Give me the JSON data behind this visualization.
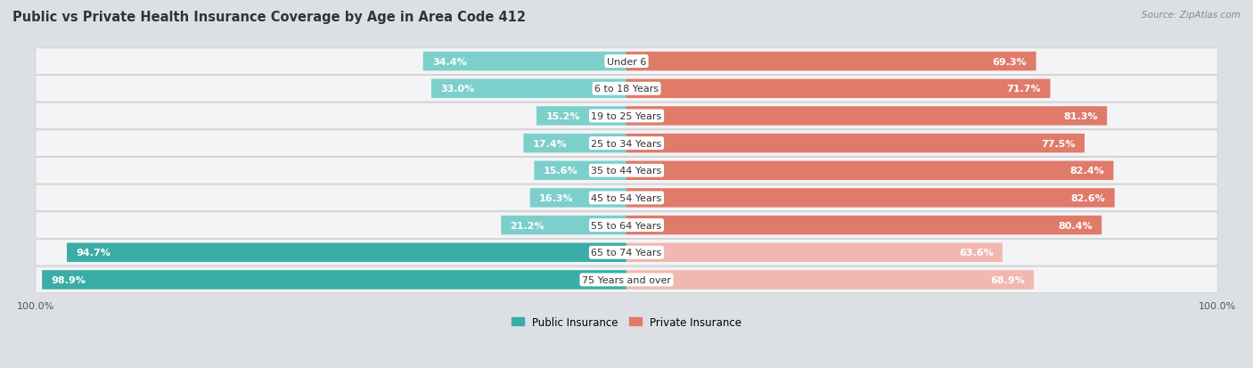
{
  "title": "Public vs Private Health Insurance Coverage by Age in Area Code 412",
  "source": "Source: ZipAtlas.com",
  "categories": [
    "Under 6",
    "6 to 18 Years",
    "19 to 25 Years",
    "25 to 34 Years",
    "35 to 44 Years",
    "45 to 54 Years",
    "55 to 64 Years",
    "65 to 74 Years",
    "75 Years and over"
  ],
  "public_values": [
    34.4,
    33.0,
    15.2,
    17.4,
    15.6,
    16.3,
    21.2,
    94.7,
    98.9
  ],
  "private_values": [
    69.3,
    71.7,
    81.3,
    77.5,
    82.4,
    82.6,
    80.4,
    63.6,
    68.9
  ],
  "public_color_dark": "#3aada8",
  "public_color_light": "#7dcfcb",
  "private_color_dark": "#e07b6a",
  "private_color_light": "#f0b8b0",
  "bg_color": "#dce0e5",
  "row_bg_color": "#f4f4f6",
  "title_fontsize": 10.5,
  "label_fontsize": 8,
  "value_fontsize": 8,
  "legend_fontsize": 8.5,
  "axis_label_fontsize": 8,
  "max_val": 100
}
